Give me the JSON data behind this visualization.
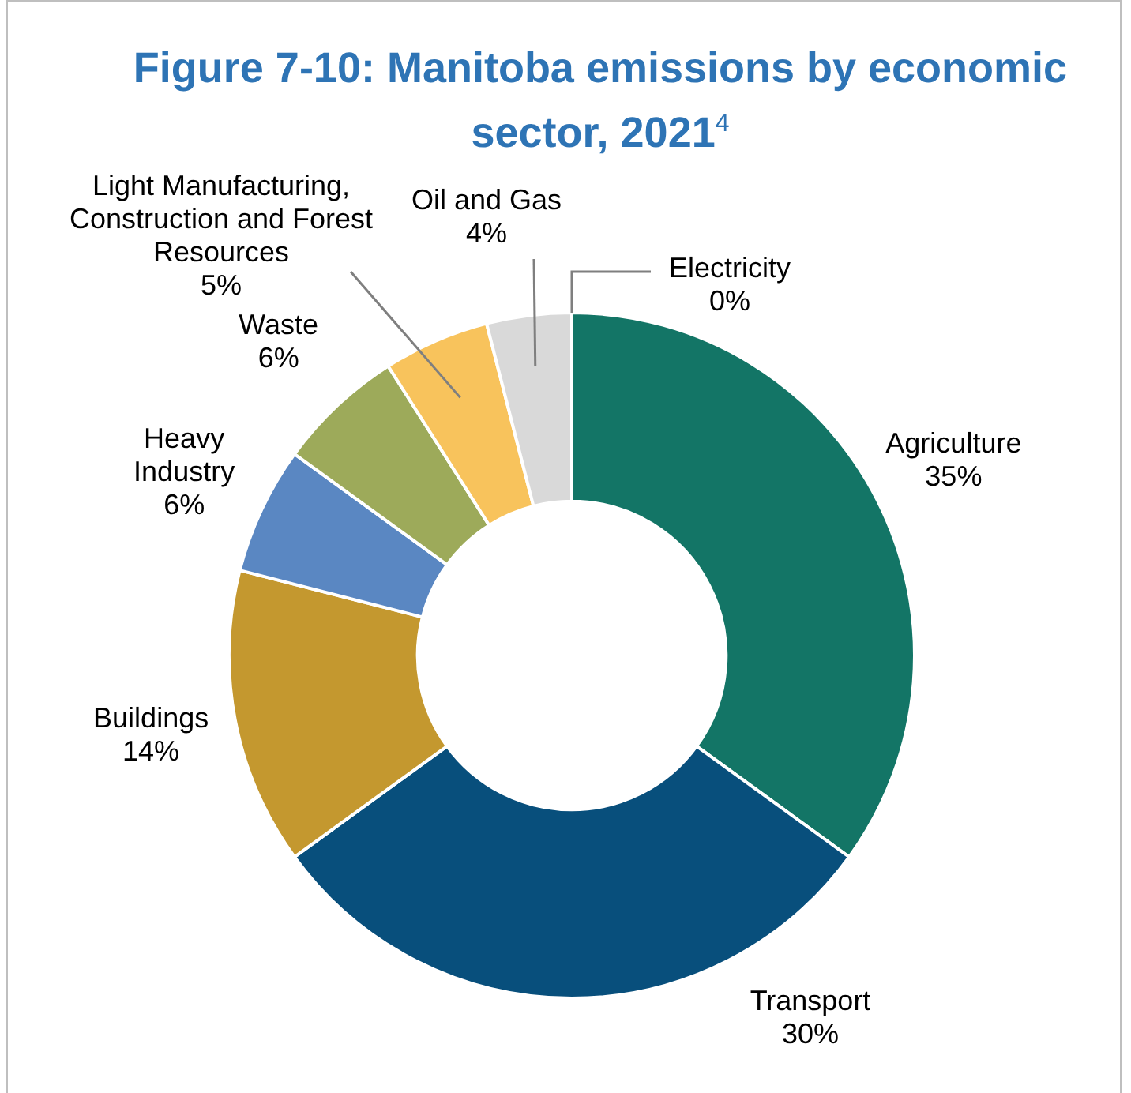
{
  "chart_data": {
    "type": "donut",
    "title": "Figure 7-10: Manitoba emissions by economic sector, 2021$^{4}$",
    "categories": [
      "Agriculture",
      "Transport",
      "Buildings",
      "Heavy Industry",
      "Waste",
      "Light Manufacturing, Construction and Forest Resources",
      "Oil and Gas",
      "Electricity"
    ],
    "values": [
      35,
      30,
      14,
      6,
      6,
      5,
      4,
      0
    ],
    "value_labels": [
      "35%",
      "30%",
      "14%",
      "6%",
      "6%",
      "5%",
      "4%",
      "0%"
    ],
    "colors": [
      "#137566",
      "#084f7c",
      "#c4982f",
      "#5a87c2",
      "#9daa5a",
      "#f8c35c",
      "#d9d9d9",
      "#808080"
    ],
    "legend": false
  }
}
